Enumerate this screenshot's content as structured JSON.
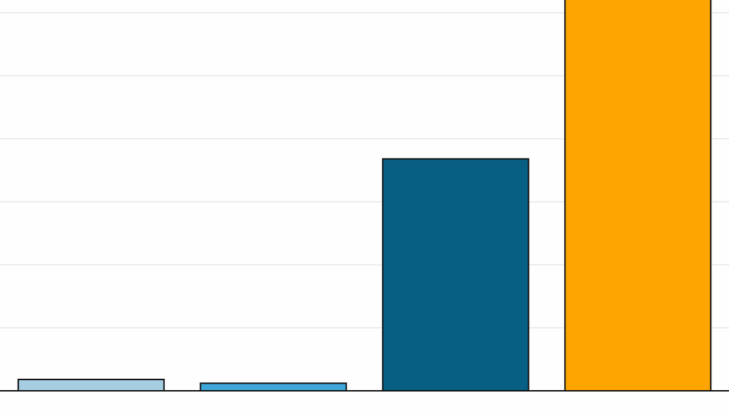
{
  "chart_data": {
    "type": "bar",
    "categories": [
      "",
      "",
      "",
      ""
    ],
    "values": [
      1.8,
      1.2,
      36.8,
      62.5
    ],
    "bar_colors": [
      "#a6cee3",
      "#3ea6d8",
      "#076083",
      "#ffa500"
    ],
    "ylim": [
      0,
      60
    ],
    "gridlines": [
      10,
      20,
      30,
      40,
      50,
      60
    ],
    "grid": true,
    "grid_color": "#ececec",
    "bar_outline_color": "#111111",
    "axis_color": "#111111",
    "background_color": "#fefefe",
    "title": "",
    "xlabel": "",
    "ylabel": ""
  }
}
